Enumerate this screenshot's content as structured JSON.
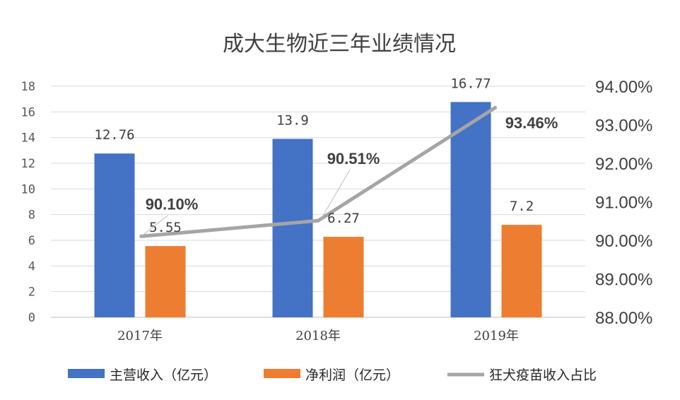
{
  "chart_data": {
    "type": "bar",
    "title": "成大生物近三年业绩情况",
    "categories": [
      "2017年",
      "2018年",
      "2019年"
    ],
    "series": [
      {
        "name": "主营收入（亿元）",
        "kind": "bar",
        "axis": "left",
        "color": "#4472C4",
        "values": [
          12.76,
          13.9,
          16.77
        ],
        "labels": [
          "12.76",
          "13.9",
          "16.77"
        ]
      },
      {
        "name": "净利润（亿元）",
        "kind": "bar",
        "axis": "left",
        "color": "#ED7D31",
        "values": [
          5.55,
          6.27,
          7.2
        ],
        "labels": [
          "5.55",
          "6.27",
          "7.2"
        ]
      },
      {
        "name": "狂犬疫苗收入占比",
        "kind": "line",
        "axis": "right",
        "color": "#A5A5A5",
        "values": [
          90.1,
          90.51,
          93.46
        ],
        "labels": [
          "90.10%",
          "90.51%",
          "93.46%"
        ]
      }
    ],
    "left_axis": {
      "min": 0,
      "max": 18,
      "step": 2,
      "ticks": [
        "0",
        "2",
        "4",
        "6",
        "8",
        "10",
        "12",
        "14",
        "16",
        "18"
      ]
    },
    "right_axis": {
      "min": 88,
      "max": 94,
      "step": 1,
      "ticks": [
        "88.00%",
        "89.00%",
        "90.00%",
        "91.00%",
        "92.00%",
        "93.00%",
        "94.00%"
      ]
    },
    "grid": true,
    "legend": "bottom"
  }
}
